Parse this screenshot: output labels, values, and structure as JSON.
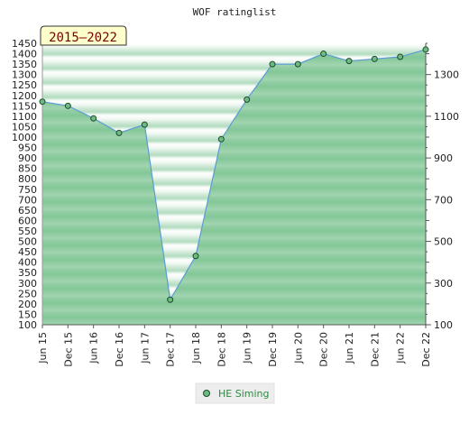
{
  "colors": {
    "area_fill": "#80c497",
    "area_line": "#5b9bd5",
    "point_fill": "#6cbb83",
    "legend_text": "#2d8a42",
    "period_box_fill": "#ffffcc",
    "period_text": "#7a0000"
  },
  "chart_data": {
    "type": "area",
    "title": "WOF ratinglist",
    "period_label": "2015–2022",
    "x": [
      "Jun 15",
      "Dec 15",
      "Jun 16",
      "Dec 16",
      "Jun 17",
      "Dec 17",
      "Jun 18",
      "Dec 18",
      "Jun 19",
      "Dec 19",
      "Jun 20",
      "Dec 20",
      "Jun 21",
      "Dec 21",
      "Jun 22",
      "Dec 22"
    ],
    "series": [
      {
        "name": "HE Siming",
        "values": [
          1170,
          1150,
          1090,
          1020,
          1060,
          220,
          430,
          990,
          1180,
          1350,
          1350,
          1400,
          1365,
          1375,
          1385,
          1420
        ]
      }
    ],
    "y_left": {
      "min": 100,
      "max": 1450,
      "ticks": [
        100,
        150,
        200,
        250,
        300,
        350,
        400,
        450,
        500,
        550,
        600,
        650,
        700,
        750,
        800,
        850,
        900,
        950,
        1000,
        1050,
        1100,
        1150,
        1200,
        1250,
        1300,
        1350,
        1400,
        1450
      ]
    },
    "y_right": {
      "ticks": [
        100,
        300,
        500,
        700,
        900,
        1100,
        1300
      ]
    },
    "legend_position": "bottom-center",
    "grid": false
  }
}
